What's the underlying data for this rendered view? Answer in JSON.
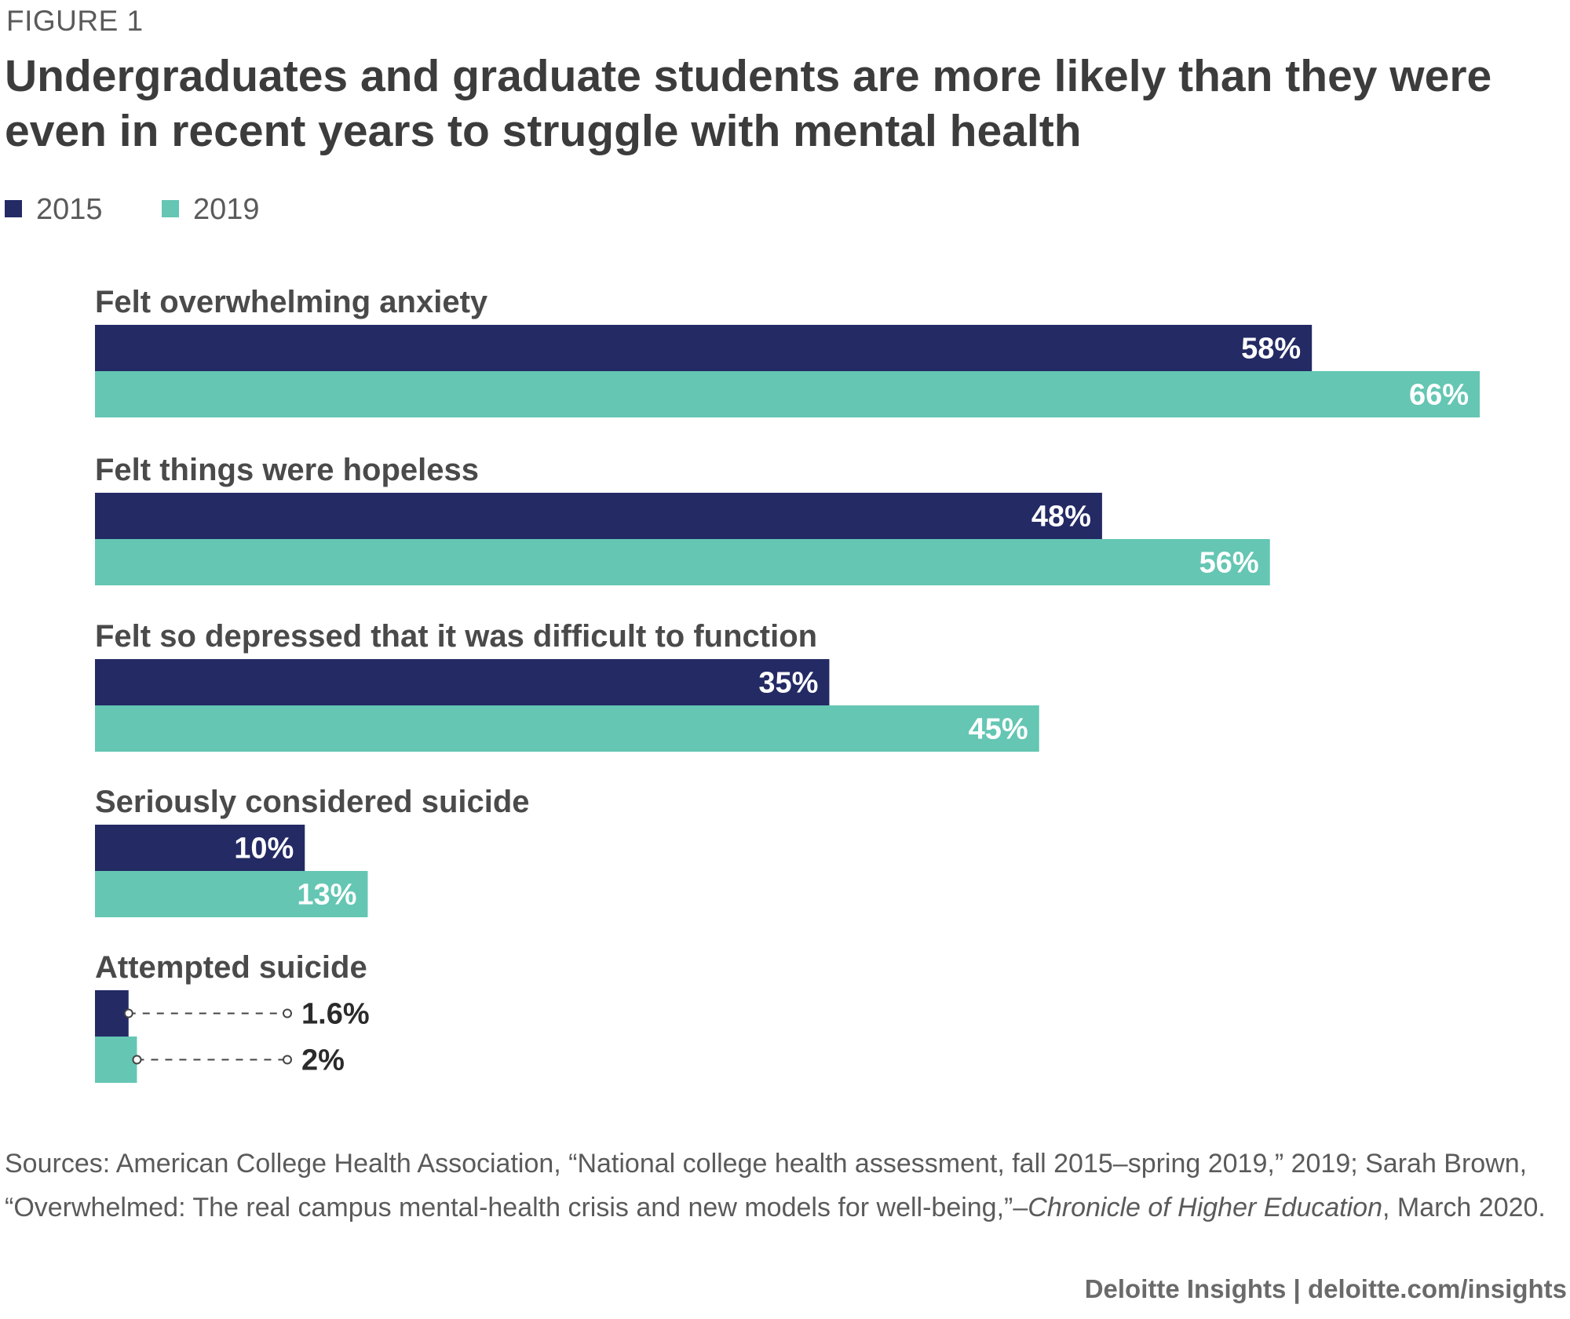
{
  "figure_label": "FIGURE 1",
  "colors": {
    "2015": "#232a64",
    "2019": "#64c6b3"
  },
  "sources": {
    "prefix": "Sources: American College Health Association, “National college health assessment, fall 2015–spring 2019,” 2019; Sarah Brown, “Overwhelmed: The real campus mental-health crisis and new models for well-being,”–",
    "italic": "Chronicle of Higher Education",
    "suffix": ", March 2020."
  },
  "credit": "Deloitte Insights | deloitte.com/insights",
  "chart_data": {
    "type": "bar",
    "orientation": "horizontal",
    "title": "Undergraduates and graduate students are more likely than they were even in recent years to struggle with mental health",
    "xlabel": "",
    "ylabel": "",
    "xlim": [
      0,
      66
    ],
    "grid": false,
    "legend_position": "top-left",
    "categories": [
      "Felt overwhelming anxiety",
      "Felt things were hopeless",
      "Felt so depressed that it was difficult to function",
      "Seriously considered suicide",
      "Attempted suicide"
    ],
    "series": [
      {
        "name": "2015",
        "values": [
          58,
          48,
          35,
          10,
          1.6
        ],
        "labels": [
          "58%",
          "48%",
          "35%",
          "10%",
          "1.6%"
        ]
      },
      {
        "name": "2019",
        "values": [
          66,
          56,
          45,
          13,
          2
        ],
        "labels": [
          "66%",
          "56%",
          "45%",
          "13%",
          "2%"
        ]
      }
    ]
  }
}
